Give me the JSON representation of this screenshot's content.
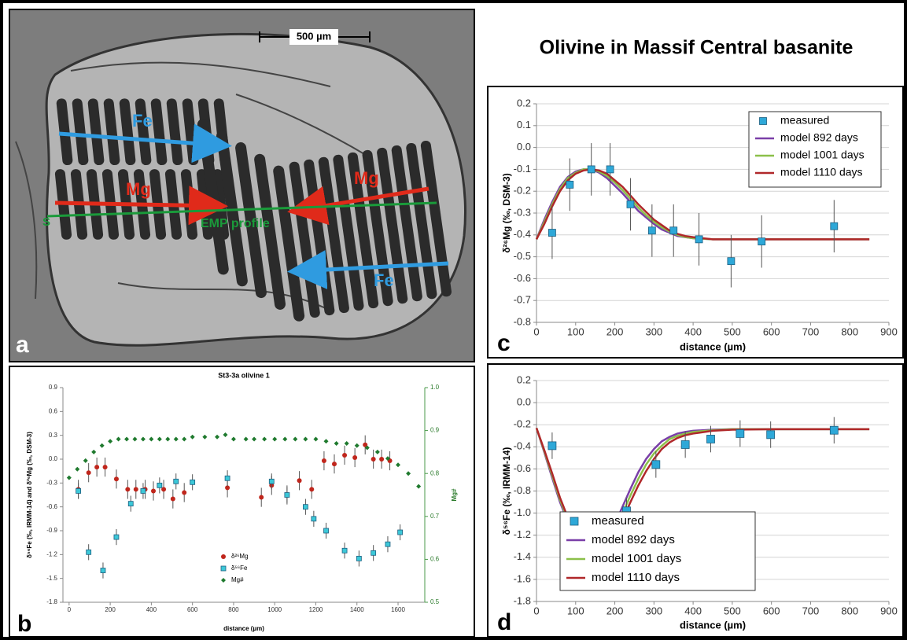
{
  "title": "Olivine in Massif Central basanite",
  "panel_a": {
    "label": "a",
    "scale_bar": "500 µm",
    "arrow_fe_top": "Fe",
    "arrow_mg_left": "Mg",
    "arrow_mg_right": "Mg",
    "arrow_fe_bottom": "Fe",
    "profile": "EMP profile",
    "profile_start": "S"
  },
  "chart_data": [
    {
      "type": "scatter",
      "panel": "b",
      "title": "St3-3a  olivine 1",
      "x_label": "distance (µm)",
      "y_label": "δ⁵⁶Fe (‰, IRMM-14) and δ²⁶Mg (‰, DSM-3)",
      "y2_label": "Mg#",
      "xlim": [
        -30,
        1730
      ],
      "xticks": [
        0,
        200,
        400,
        600,
        800,
        1000,
        1200,
        1400,
        1600
      ],
      "ylim": [
        -1.8,
        0.9
      ],
      "yticks": [
        -1.8,
        -1.5,
        -1.2,
        -0.9,
        -0.6,
        -0.3,
        {
          "value": 0,
          "label": "0.0"
        },
        0.3,
        0.6,
        0.9
      ],
      "y2lim": [
        0.5,
        1.0
      ],
      "y2ticks": [
        0.5,
        0.6,
        0.7,
        0.8,
        0.9,
        {
          "value": 1.0,
          "label": "1.0"
        }
      ],
      "grid": false,
      "legend": "lower center",
      "series": [
        {
          "name": "δ²⁶Mg",
          "color": "#c0261c",
          "mode": "markers",
          "marker": "circle",
          "x": [
            45,
            95,
            135,
            175,
            230,
            285,
            325,
            370,
            410,
            460,
            505,
            560,
            770,
            935,
            985,
            1060,
            1120,
            1180,
            1240,
            1290,
            1340,
            1390,
            1440,
            1480,
            1520,
            1560
          ],
          "values": [
            -0.38,
            -0.17,
            -0.1,
            -0.1,
            -0.25,
            -0.38,
            -0.38,
            -0.38,
            -0.4,
            -0.38,
            -0.5,
            -0.42,
            -0.36,
            -0.48,
            -0.33,
            -0.45,
            -0.27,
            -0.38,
            -0.02,
            -0.06,
            0.05,
            0.02,
            0.18,
            0.0,
            0.0,
            -0.02
          ],
          "errors": [
            0.12,
            0.12,
            0.12,
            0.12,
            0.12,
            0.12,
            0.12,
            0.12,
            0.12,
            0.12,
            0.12,
            0.12,
            0.12,
            0.12,
            0.12,
            0.12,
            0.12,
            0.12,
            0.12,
            0.12,
            0.12,
            0.12,
            0.12,
            0.12,
            0.12,
            0.12
          ]
        },
        {
          "name": "δ⁵⁶Fe",
          "color": "#3cc8d8",
          "mode": "markers",
          "marker": "square",
          "x": [
            45,
            95,
            165,
            230,
            300,
            360,
            440,
            520,
            600,
            770,
            985,
            1060,
            1150,
            1190,
            1250,
            1340,
            1410,
            1480,
            1550,
            1610
          ],
          "values": [
            -0.4,
            -1.17,
            -1.4,
            -0.98,
            -0.56,
            -0.4,
            -0.33,
            -0.28,
            -0.29,
            -0.24,
            -0.28,
            -0.45,
            -0.6,
            -0.75,
            -0.9,
            -1.15,
            -1.25,
            -1.18,
            -1.07,
            -0.92
          ],
          "errors": [
            0.1,
            0.1,
            0.1,
            0.1,
            0.1,
            0.1,
            0.1,
            0.1,
            0.1,
            0.1,
            0.1,
            0.1,
            0.1,
            0.1,
            0.1,
            0.1,
            0.1,
            0.1,
            0.1,
            0.1
          ]
        },
        {
          "name": "Mg#",
          "color": "#1f7a2e",
          "mode": "markers",
          "marker": "diamond",
          "axis": "y2",
          "x": [
            0,
            40,
            80,
            120,
            160,
            200,
            240,
            280,
            320,
            360,
            400,
            440,
            480,
            520,
            560,
            600,
            660,
            720,
            760,
            800,
            860,
            900,
            950,
            1000,
            1050,
            1100,
            1150,
            1200,
            1250,
            1300,
            1350,
            1400,
            1450,
            1500,
            1550,
            1600,
            1650,
            1700
          ],
          "values": [
            0.79,
            0.81,
            0.83,
            0.85,
            0.865,
            0.875,
            0.88,
            0.88,
            0.88,
            0.88,
            0.88,
            0.88,
            0.88,
            0.88,
            0.88,
            0.885,
            0.885,
            0.885,
            0.89,
            0.88,
            0.88,
            0.88,
            0.88,
            0.88,
            0.88,
            0.88,
            0.88,
            0.88,
            0.875,
            0.87,
            0.87,
            0.865,
            0.86,
            0.85,
            0.835,
            0.82,
            0.8,
            0.77
          ]
        }
      ]
    },
    {
      "type": "line",
      "panel": "c",
      "x_label": "distance (µm)",
      "y_label": "δ²⁶Mg (‰, DSM-3)",
      "xlim": [
        0,
        900
      ],
      "xticks": [
        0,
        100,
        200,
        300,
        400,
        500,
        600,
        700,
        800,
        900
      ],
      "ylim": [
        -0.8,
        0.2
      ],
      "yticks": [
        -0.8,
        -0.7,
        -0.6,
        -0.5,
        -0.4,
        -0.3,
        -0.2,
        -0.1,
        {
          "value": 0,
          "label": "0.0"
        },
        0.1,
        0.2
      ],
      "grid": true,
      "legend": "upper right",
      "x": [
        0,
        20,
        40,
        60,
        80,
        100,
        120,
        140,
        160,
        180,
        200,
        220,
        240,
        260,
        280,
        300,
        320,
        340,
        360,
        380,
        400,
        450,
        500,
        600,
        700,
        850
      ],
      "series": [
        {
          "name": "measured",
          "color": "#2ea8d8",
          "mode": "markers",
          "marker": "square",
          "x": [
            40,
            85,
            140,
            188,
            240,
            295,
            350,
            415,
            497,
            575,
            760
          ],
          "values": [
            -0.39,
            -0.17,
            -0.1,
            -0.1,
            -0.26,
            -0.38,
            -0.38,
            -0.42,
            -0.52,
            -0.43,
            -0.36
          ],
          "errors": [
            0.12,
            0.12,
            0.12,
            0.12,
            0.12,
            0.12,
            0.12,
            0.12,
            0.12,
            0.12,
            0.12
          ]
        },
        {
          "name": "model  892 days",
          "color": "#7a3fa8",
          "mode": "lines",
          "values": [
            -0.42,
            -0.33,
            -0.25,
            -0.18,
            -0.135,
            -0.11,
            -0.1,
            -0.1,
            -0.115,
            -0.14,
            -0.175,
            -0.21,
            -0.25,
            -0.29,
            -0.32,
            -0.35,
            -0.375,
            -0.39,
            -0.405,
            -0.41,
            -0.415,
            -0.42,
            -0.42,
            -0.42,
            -0.42,
            -0.42
          ]
        },
        {
          "name": "model  1001 days",
          "color": "#8cc04a",
          "mode": "lines",
          "values": [
            -0.42,
            -0.34,
            -0.26,
            -0.19,
            -0.14,
            -0.115,
            -0.1,
            -0.1,
            -0.11,
            -0.13,
            -0.16,
            -0.195,
            -0.235,
            -0.275,
            -0.31,
            -0.34,
            -0.365,
            -0.385,
            -0.4,
            -0.41,
            -0.415,
            -0.42,
            -0.42,
            -0.42,
            -0.42,
            -0.42
          ]
        },
        {
          "name": "model  1110 days",
          "color": "#b0282a",
          "mode": "lines",
          "values": [
            -0.42,
            -0.35,
            -0.27,
            -0.2,
            -0.15,
            -0.12,
            -0.105,
            -0.1,
            -0.105,
            -0.12,
            -0.15,
            -0.18,
            -0.22,
            -0.26,
            -0.295,
            -0.33,
            -0.355,
            -0.38,
            -0.395,
            -0.405,
            -0.41,
            -0.42,
            -0.42,
            -0.42,
            -0.42,
            -0.42
          ]
        }
      ]
    },
    {
      "type": "line",
      "panel": "d",
      "x_label": "distance (µm)",
      "y_label": "δ⁵⁶Fe (‰, IRMM-14)",
      "xlim": [
        0,
        900
      ],
      "xticks": [
        0,
        100,
        200,
        300,
        400,
        500,
        600,
        700,
        800,
        900
      ],
      "ylim": [
        -1.8,
        0.2
      ],
      "yticks": [
        -1.8,
        -1.6,
        -1.4,
        -1.2,
        {
          "value": -1.0,
          "label": "-1.0"
        },
        -0.8,
        -0.6,
        -0.4,
        -0.2,
        {
          "value": 0,
          "label": "0.0"
        },
        0.2
      ],
      "grid": true,
      "legend": "lower left",
      "x": [
        0,
        20,
        40,
        60,
        80,
        100,
        120,
        140,
        160,
        180,
        200,
        220,
        240,
        260,
        280,
        300,
        320,
        340,
        360,
        380,
        400,
        450,
        500,
        600,
        700,
        850
      ],
      "series": [
        {
          "name": "measured",
          "color": "#2ea8d8",
          "mode": "markers",
          "marker": "square",
          "x": [
            40,
            100,
            170,
            230,
            305,
            380,
            445,
            520,
            598,
            760
          ],
          "values": [
            -0.39,
            -1.17,
            -1.37,
            -0.98,
            -0.56,
            -0.38,
            -0.33,
            -0.28,
            -0.29,
            -0.25
          ],
          "errors": [
            0.12,
            0.12,
            0.12,
            0.12,
            0.12,
            0.12,
            0.12,
            0.12,
            0.12,
            0.12
          ]
        },
        {
          "name": "model  892 days",
          "color": "#7a3fa8",
          "mode": "lines",
          "values": [
            -0.23,
            -0.45,
            -0.68,
            -0.9,
            -1.08,
            -1.22,
            -1.31,
            -1.35,
            -1.33,
            -1.24,
            -1.1,
            -0.94,
            -0.78,
            -0.63,
            -0.51,
            -0.42,
            -0.35,
            -0.31,
            -0.28,
            -0.265,
            -0.255,
            -0.245,
            -0.24,
            -0.24,
            -0.24,
            -0.24
          ]
        },
        {
          "name": "model  1001 days",
          "color": "#8cc04a",
          "mode": "lines",
          "values": [
            -0.23,
            -0.44,
            -0.66,
            -0.88,
            -1.06,
            -1.2,
            -1.3,
            -1.35,
            -1.34,
            -1.27,
            -1.15,
            -1.0,
            -0.84,
            -0.69,
            -0.56,
            -0.46,
            -0.39,
            -0.33,
            -0.3,
            -0.28,
            -0.265,
            -0.25,
            -0.24,
            -0.24,
            -0.24,
            -0.24
          ]
        },
        {
          "name": "model  1110 days",
          "color": "#b0282a",
          "mode": "lines",
          "values": [
            -0.23,
            -0.43,
            -0.64,
            -0.86,
            -1.04,
            -1.18,
            -1.29,
            -1.34,
            -1.35,
            -1.3,
            -1.2,
            -1.06,
            -0.9,
            -0.75,
            -0.62,
            -0.51,
            -0.42,
            -0.36,
            -0.32,
            -0.295,
            -0.28,
            -0.255,
            -0.245,
            -0.24,
            -0.24,
            -0.24
          ]
        }
      ]
    }
  ]
}
